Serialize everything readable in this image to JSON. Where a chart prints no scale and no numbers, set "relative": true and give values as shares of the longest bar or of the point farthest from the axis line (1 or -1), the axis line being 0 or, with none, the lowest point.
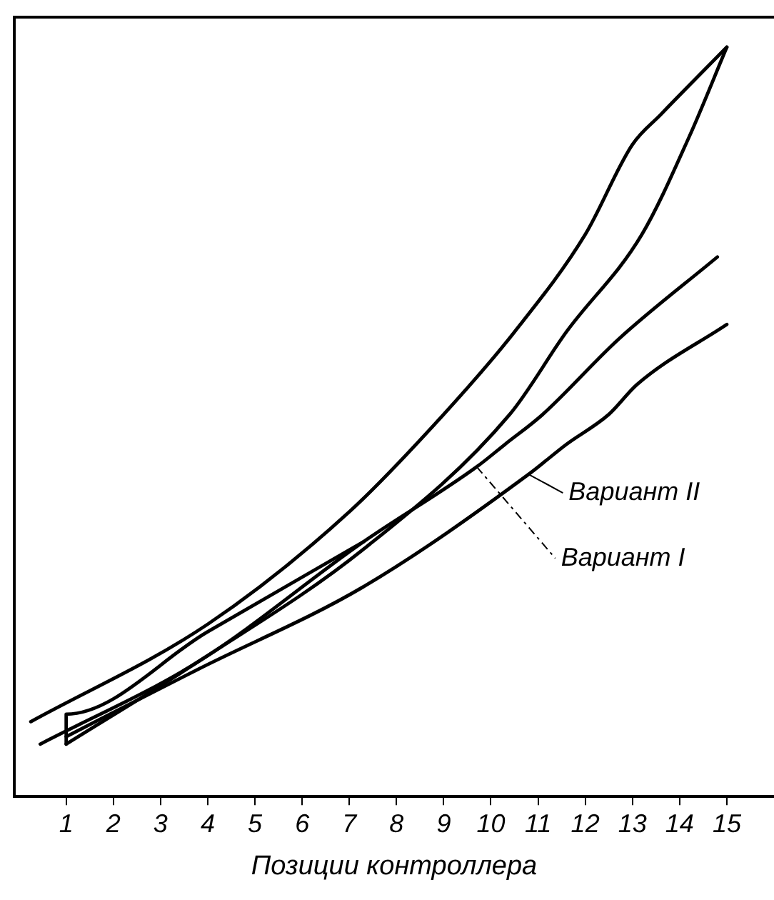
{
  "chart_data": {
    "type": "line",
    "relative": true,
    "xlabel": "Позиции контроллера",
    "xlim": [
      -0.1,
      16
    ],
    "xticks": [
      1,
      2,
      3,
      4,
      5,
      6,
      7,
      8,
      9,
      10,
      11,
      12,
      13,
      14,
      15
    ],
    "grid": false,
    "legend": false,
    "marker": "none",
    "line_style": "solid",
    "series": [
      {
        "color": "#000000",
        "x": [
          0.25,
          4,
          7,
          9,
          10.5,
          12,
          13,
          13.6,
          15
        ],
        "values": [
          0.1,
          0.23,
          0.38,
          0.51,
          0.62,
          0.75,
          0.87,
          0.91,
          1
        ]
      },
      {
        "color": "#000000",
        "x": [
          1,
          3.8,
          7.3,
          10.4,
          11.6,
          13.2,
          14.2,
          15
        ],
        "values": [
          0.07,
          0.18,
          0.33,
          0.51,
          0.62,
          0.75,
          0.88,
          1
        ]
      },
      {
        "color": "#000000",
        "x": [
          1,
          1,
          4,
          7.3
        ],
        "values": [
          0.07,
          0.11,
          0.22,
          0.34
        ]
      },
      {
        "color": "#000000",
        "x": [
          0.45,
          3.8,
          7.3,
          9.7,
          10.3,
          11.1,
          12.7,
          14.8
        ],
        "values": [
          0.07,
          0.18,
          0.34,
          0.44,
          0.47,
          0.51,
          0.61,
          0.72
        ]
      },
      {
        "color": "#000000",
        "x": [
          1,
          3.8,
          7.3,
          10.8,
          11.6,
          12.5,
          13.1,
          15
        ],
        "values": [
          0.08,
          0.17,
          0.28,
          0.43,
          0.47,
          0.51,
          0.55,
          0.63
        ]
      }
    ],
    "annotations": [
      {
        "text": "Вариант II",
        "x": 10.8,
        "y": 0.43
      },
      {
        "text": "Вариант I",
        "x": 9.7,
        "y": 0.44
      }
    ]
  }
}
